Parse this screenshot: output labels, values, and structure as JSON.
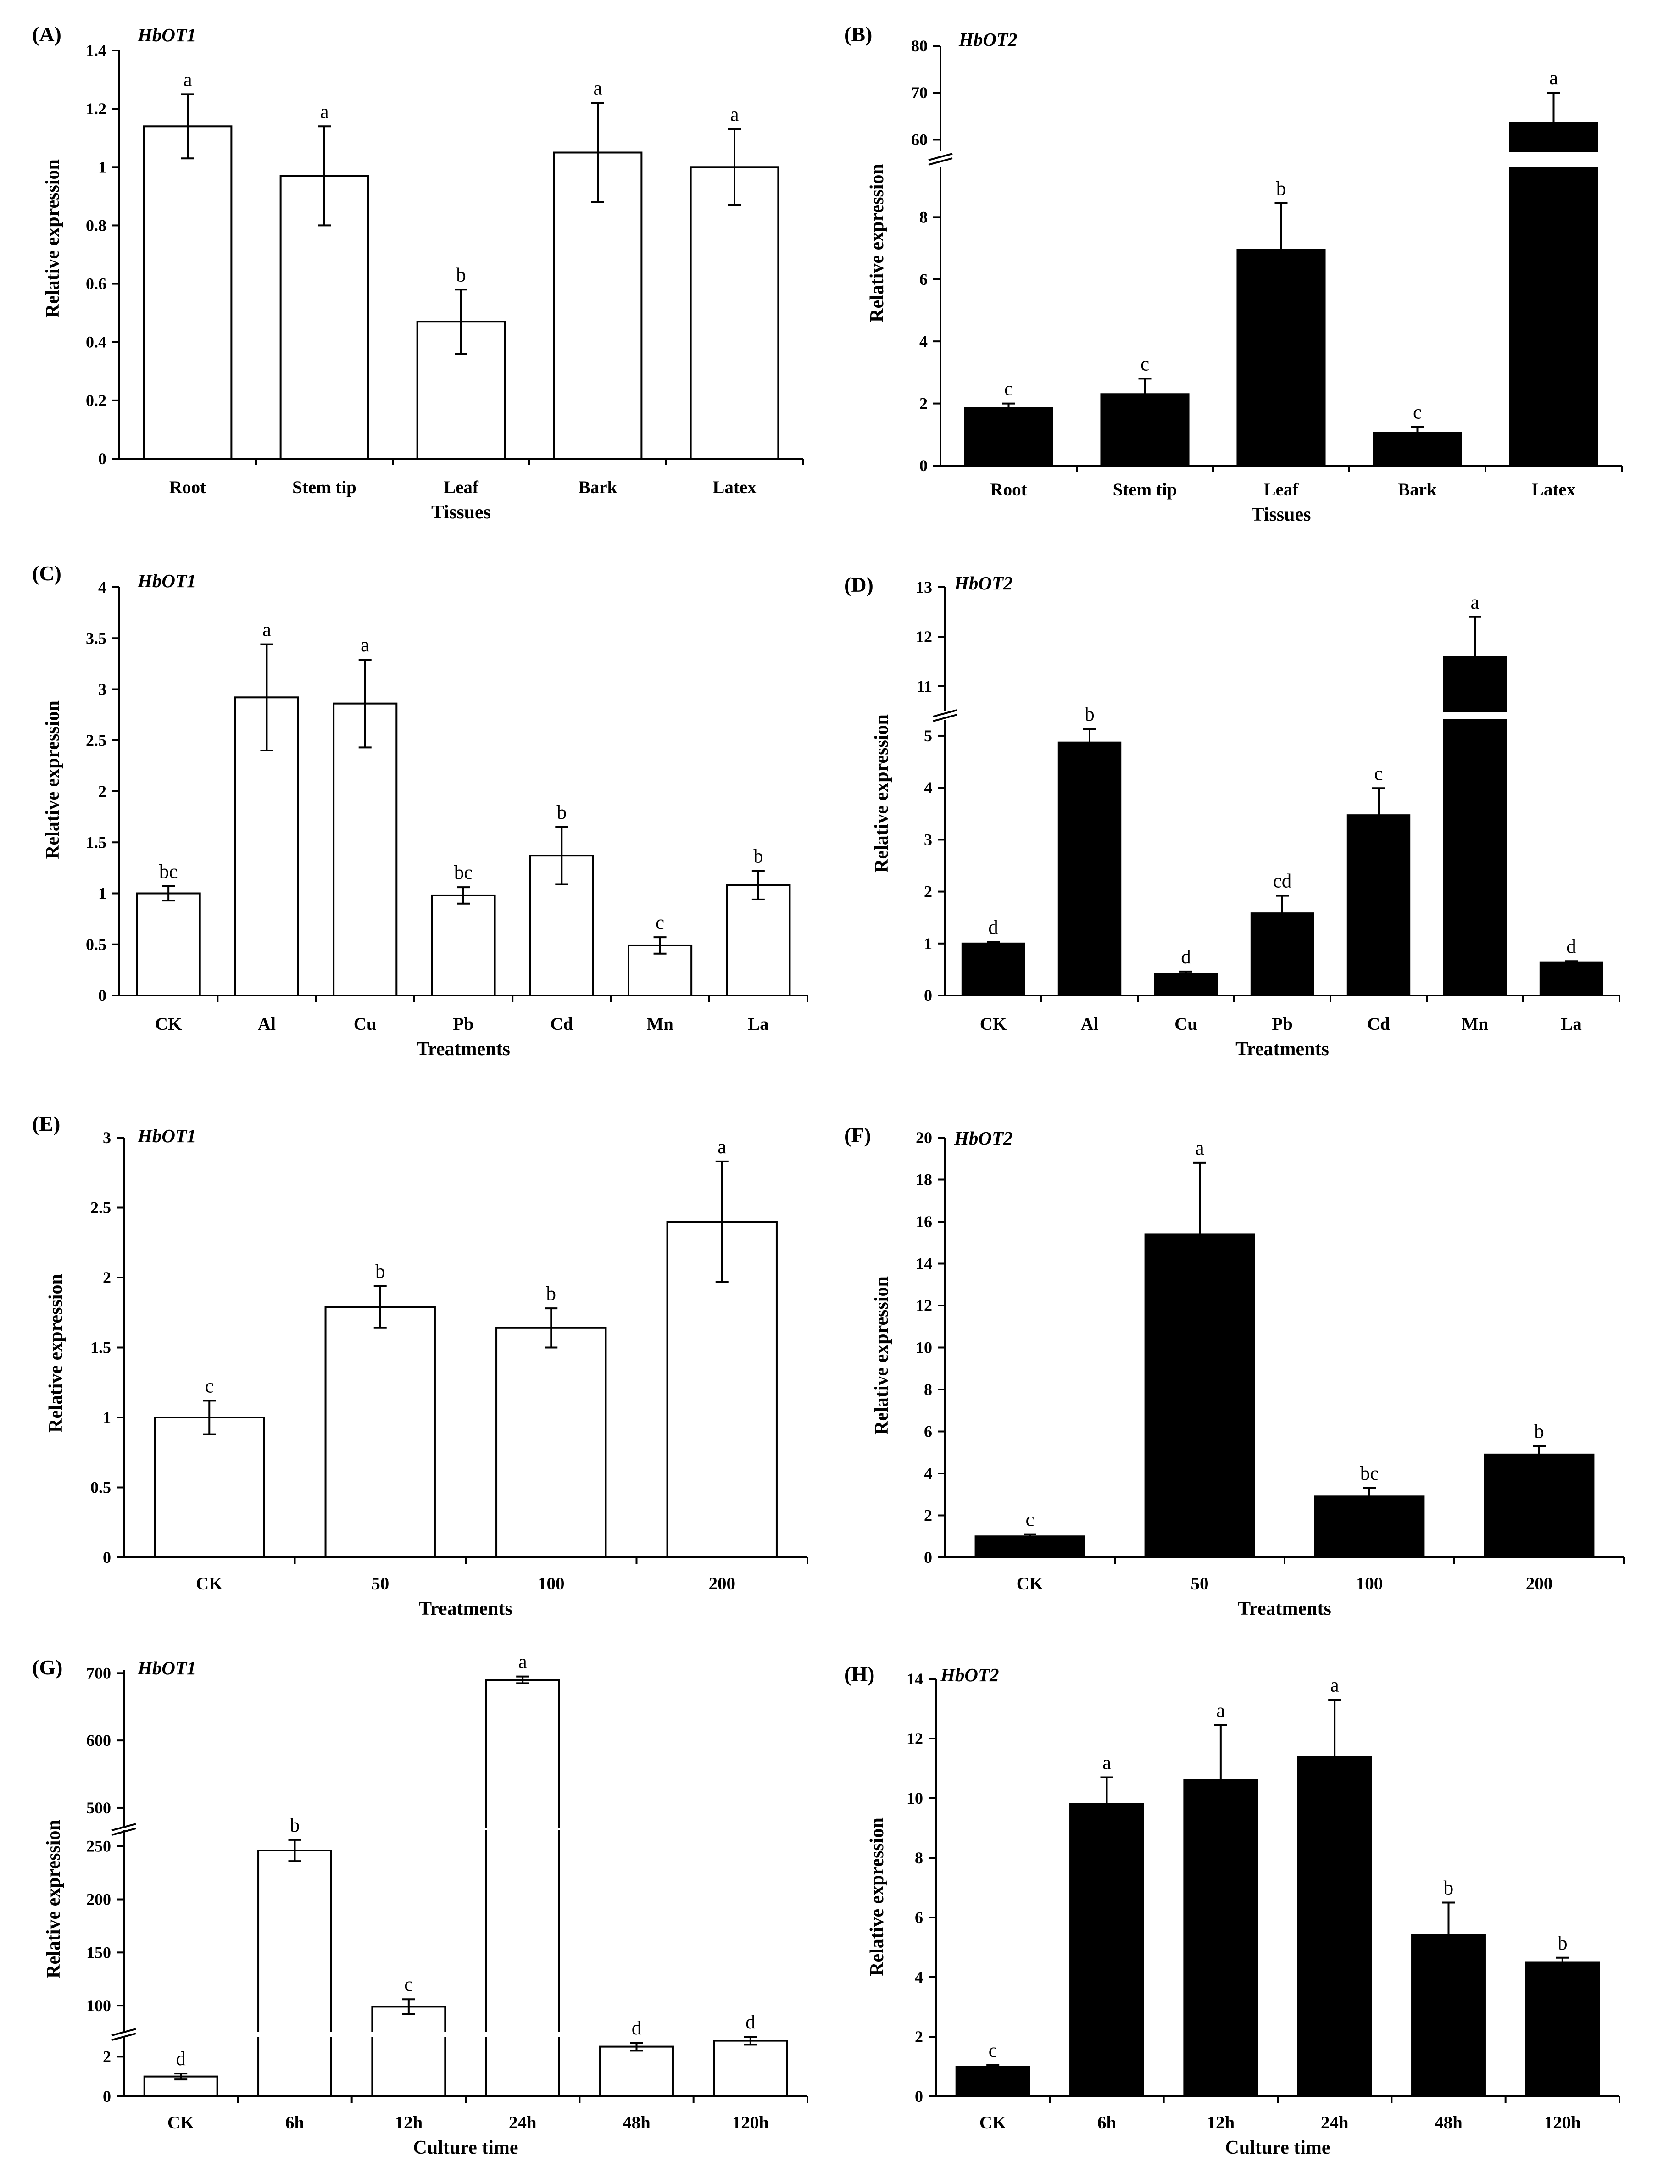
{
  "figure": {
    "panels": [
      {
        "label": "(A)",
        "title": "HbOT1"
      },
      {
        "label": "(B)",
        "title": "HbOT2"
      },
      {
        "label": "(C)",
        "title": "HbOT1"
      },
      {
        "label": "(D)",
        "title": "HbOT2"
      },
      {
        "label": "(E)",
        "title": "HbOT1"
      },
      {
        "label": "(F)",
        "title": "HbOT2"
      },
      {
        "label": "(G)",
        "title": "HbOT1"
      },
      {
        "label": "(H)",
        "title": "HbOT2"
      }
    ]
  },
  "chart_data": [
    {
      "panel": "A",
      "type": "bar",
      "title": "HbOT1",
      "xlabel": "Tissues",
      "ylabel": "Relative expression",
      "fill": "#ffffff",
      "categories": [
        "Root",
        "Stem tip",
        "Leaf",
        "Bark",
        "Latex"
      ],
      "values": [
        1.14,
        0.97,
        0.47,
        1.05,
        1.0
      ],
      "errors": [
        0.11,
        0.17,
        0.11,
        0.17,
        0.13
      ],
      "significance": [
        "a",
        "a",
        "b",
        "a",
        "a"
      ],
      "ylim": [
        0,
        1.4
      ],
      "yticks": [
        "0",
        "0.2",
        "0.4",
        "0.6",
        "0.8",
        "1",
        "1.2",
        "1.4"
      ]
    },
    {
      "panel": "B",
      "type": "bar",
      "title": "HbOT2",
      "xlabel": "Tissues",
      "ylabel": "Relative expression",
      "fill": "#000000",
      "categories": [
        "Root",
        "Stem tip",
        "Leaf",
        "Bark",
        "Latex"
      ],
      "values": [
        1.85,
        2.3,
        6.95,
        1.05,
        63.5
      ],
      "errors": [
        0.15,
        0.5,
        1.5,
        0.2,
        6.5
      ],
      "significance": [
        "c",
        "c",
        "b",
        "c",
        "a"
      ],
      "ylim": [
        0,
        80
      ],
      "axis_break": {
        "lower": [
          0,
          9.6
        ],
        "upper": [
          57.5,
          80
        ]
      },
      "yticks": [
        "0",
        "2",
        "4",
        "6",
        "8",
        "60",
        "70",
        "80"
      ]
    },
    {
      "panel": "C",
      "type": "bar",
      "title": "HbOT1",
      "xlabel": "Treatments",
      "ylabel": "Relative expression",
      "fill": "#ffffff",
      "categories": [
        "CK",
        "Al",
        "Cu",
        "Pb",
        "Cd",
        "Mn",
        "La"
      ],
      "values": [
        1.0,
        2.92,
        2.86,
        0.98,
        1.37,
        0.49,
        1.08
      ],
      "errors": [
        0.07,
        0.52,
        0.43,
        0.08,
        0.28,
        0.08,
        0.14
      ],
      "significance": [
        "bc",
        "a",
        "a",
        "bc",
        "b",
        "c",
        "b"
      ],
      "ylim": [
        0,
        4
      ],
      "yticks": [
        "0",
        "0.5",
        "1",
        "1.5",
        "2",
        "2.5",
        "3",
        "3.5",
        "4"
      ]
    },
    {
      "panel": "D",
      "type": "bar",
      "title": "HbOT2",
      "xlabel": "Treatments",
      "ylabel": "Relative expression",
      "fill": "#000000",
      "categories": [
        "CK",
        "Al",
        "Cu",
        "Pb",
        "Cd",
        "Mn",
        "La"
      ],
      "values": [
        1.0,
        4.87,
        0.42,
        1.58,
        3.47,
        11.6,
        0.63
      ],
      "errors": [
        0.03,
        0.26,
        0.04,
        0.34,
        0.52,
        0.8,
        0.03
      ],
      "significance": [
        "d",
        "b",
        "d",
        "cd",
        "c",
        "a",
        "d"
      ],
      "ylim": [
        0,
        13
      ],
      "axis_break": {
        "lower": [
          0,
          5.3
        ],
        "upper": [
          10.5,
          13
        ]
      },
      "yticks": [
        "0",
        "1",
        "2",
        "3",
        "4",
        "5",
        "11",
        "12",
        "13"
      ]
    },
    {
      "panel": "E",
      "type": "bar",
      "title": "HbOT1",
      "xlabel": "Treatments",
      "ylabel": "Relative expression",
      "fill": "#ffffff",
      "categories": [
        "CK",
        "50",
        "100",
        "200"
      ],
      "values": [
        1.0,
        1.79,
        1.64,
        2.4
      ],
      "errors": [
        0.12,
        0.15,
        0.14,
        0.43
      ],
      "significance": [
        "c",
        "b",
        "b",
        "a"
      ],
      "ylim": [
        0,
        3
      ],
      "yticks": [
        "0",
        "0.5",
        "1",
        "1.5",
        "2",
        "2.5",
        "3"
      ]
    },
    {
      "panel": "F",
      "type": "bar",
      "title": "HbOT2",
      "xlabel": "Treatments",
      "ylabel": "Relative expression",
      "fill": "#000000",
      "categories": [
        "CK",
        "50",
        "100",
        "200"
      ],
      "values": [
        1.0,
        15.4,
        2.9,
        4.9
      ],
      "errors": [
        0.1,
        3.4,
        0.4,
        0.4
      ],
      "significance": [
        "c",
        "a",
        "bc",
        "b"
      ],
      "ylim": [
        0,
        20
      ],
      "yticks": [
        "0",
        "2",
        "4",
        "6",
        "8",
        "10",
        "12",
        "14",
        "16",
        "18",
        "20"
      ]
    },
    {
      "panel": "G",
      "type": "bar",
      "title": "HbOT1",
      "xlabel": "Culture time",
      "ylabel": "Relative expression",
      "fill": "#ffffff",
      "categories": [
        "CK",
        "6h",
        "12h",
        "24h",
        "48h",
        "120h"
      ],
      "values": [
        1.0,
        246,
        99,
        690,
        2.5,
        2.8
      ],
      "errors": [
        0.15,
        10,
        7,
        5,
        0.2,
        0.2
      ],
      "significance": [
        "d",
        "b",
        "c",
        "a",
        "d",
        "d"
      ],
      "ylim": [
        0,
        700
      ],
      "axis_break": {
        "segments": [
          [
            0,
            3
          ],
          [
            75,
            265
          ],
          [
            470,
            705
          ]
        ]
      },
      "yticks": [
        "0",
        "2",
        "100",
        "150",
        "200",
        "250",
        "500",
        "600",
        "700"
      ]
    },
    {
      "panel": "H",
      "type": "bar",
      "title": "HbOT2",
      "xlabel": "Culture time",
      "ylabel": "Relative expression",
      "fill": "#000000",
      "categories": [
        "CK",
        "6h",
        "12h",
        "24h",
        "48h",
        "120h"
      ],
      "values": [
        1.0,
        9.8,
        10.6,
        11.4,
        5.4,
        4.5
      ],
      "errors": [
        0.05,
        0.9,
        1.85,
        1.9,
        1.1,
        0.15
      ],
      "significance": [
        "c",
        "a",
        "a",
        "a",
        "b",
        "b"
      ],
      "ylim": [
        0,
        14
      ],
      "yticks": [
        "0",
        "2",
        "4",
        "6",
        "8",
        "10",
        "12",
        "14"
      ]
    }
  ]
}
